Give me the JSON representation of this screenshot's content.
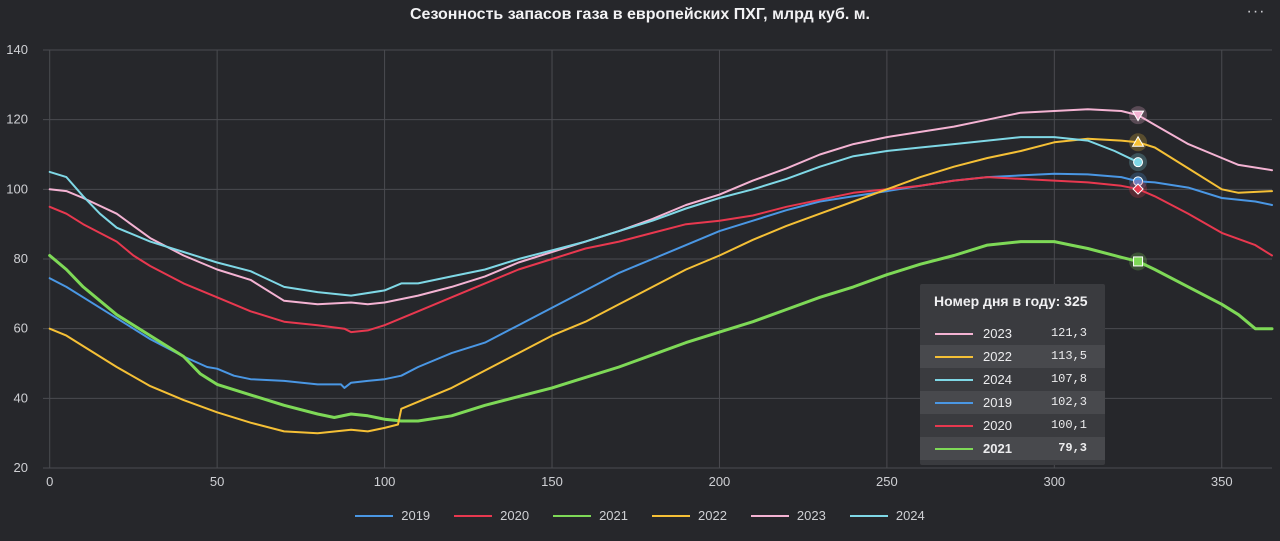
{
  "chart_data": {
    "type": "line",
    "title": "Сезонность запасов газа в европейских ПХГ, млрд куб. м.",
    "xlabel": "",
    "ylabel": "",
    "xlim": [
      -2,
      365
    ],
    "ylim": [
      20,
      140
    ],
    "x_ticks": [
      0,
      50,
      100,
      150,
      200,
      250,
      300,
      350
    ],
    "y_ticks": [
      20,
      40,
      60,
      80,
      100,
      120,
      140
    ],
    "grid": true,
    "legend_position": "bottom",
    "series": [
      {
        "name": "2019",
        "color": "#4a97e4",
        "points": [
          [
            0,
            74.5
          ],
          [
            5,
            72
          ],
          [
            10,
            69
          ],
          [
            20,
            63
          ],
          [
            30,
            57
          ],
          [
            40,
            52
          ],
          [
            47,
            49
          ],
          [
            50,
            48.5
          ],
          [
            55,
            46.5
          ],
          [
            60,
            45.5
          ],
          [
            70,
            45
          ],
          [
            80,
            44
          ],
          [
            87,
            44
          ],
          [
            88,
            43
          ],
          [
            90,
            44.5
          ],
          [
            95,
            45
          ],
          [
            100,
            45.5
          ],
          [
            105,
            46.5
          ],
          [
            110,
            49
          ],
          [
            120,
            53
          ],
          [
            130,
            56
          ],
          [
            140,
            61
          ],
          [
            150,
            66
          ],
          [
            160,
            71
          ],
          [
            170,
            76
          ],
          [
            180,
            80
          ],
          [
            190,
            84
          ],
          [
            200,
            88
          ],
          [
            210,
            91
          ],
          [
            220,
            94
          ],
          [
            230,
            96.5
          ],
          [
            240,
            98
          ],
          [
            250,
            99.5
          ],
          [
            260,
            101
          ],
          [
            270,
            102.5
          ],
          [
            280,
            103.5
          ],
          [
            290,
            104
          ],
          [
            300,
            104.5
          ],
          [
            310,
            104.3
          ],
          [
            320,
            103.5
          ],
          [
            325,
            102.3
          ],
          [
            330,
            102
          ],
          [
            340,
            100.5
          ],
          [
            350,
            97.5
          ],
          [
            360,
            96.5
          ],
          [
            365,
            95.5
          ]
        ]
      },
      {
        "name": "2020",
        "color": "#e8384f",
        "points": [
          [
            0,
            95
          ],
          [
            5,
            93
          ],
          [
            10,
            90
          ],
          [
            20,
            85
          ],
          [
            25,
            81
          ],
          [
            30,
            78
          ],
          [
            40,
            73
          ],
          [
            50,
            69
          ],
          [
            60,
            65
          ],
          [
            70,
            62
          ],
          [
            80,
            61
          ],
          [
            88,
            60
          ],
          [
            90,
            59
          ],
          [
            95,
            59.5
          ],
          [
            100,
            61
          ],
          [
            110,
            65
          ],
          [
            120,
            69
          ],
          [
            130,
            73
          ],
          [
            140,
            77
          ],
          [
            150,
            80
          ],
          [
            160,
            83
          ],
          [
            170,
            85
          ],
          [
            180,
            87.5
          ],
          [
            190,
            90
          ],
          [
            200,
            91
          ],
          [
            210,
            92.5
          ],
          [
            220,
            95
          ],
          [
            230,
            97
          ],
          [
            240,
            99
          ],
          [
            250,
            100
          ],
          [
            260,
            101
          ],
          [
            270,
            102.5
          ],
          [
            280,
            103.5
          ],
          [
            290,
            103
          ],
          [
            300,
            102.5
          ],
          [
            310,
            102
          ],
          [
            320,
            101
          ],
          [
            325,
            100.1
          ],
          [
            330,
            98
          ],
          [
            340,
            93
          ],
          [
            350,
            87.5
          ],
          [
            360,
            84
          ],
          [
            365,
            81
          ]
        ]
      },
      {
        "name": "2021",
        "color": "#7ed957",
        "width": 3,
        "points": [
          [
            0,
            81
          ],
          [
            5,
            77
          ],
          [
            10,
            72
          ],
          [
            20,
            64
          ],
          [
            30,
            58
          ],
          [
            40,
            52
          ],
          [
            45,
            47
          ],
          [
            50,
            44
          ],
          [
            60,
            41
          ],
          [
            70,
            38
          ],
          [
            80,
            35.5
          ],
          [
            85,
            34.5
          ],
          [
            90,
            35.5
          ],
          [
            95,
            35
          ],
          [
            100,
            34
          ],
          [
            105,
            33.5
          ],
          [
            110,
            33.5
          ],
          [
            120,
            35
          ],
          [
            130,
            38
          ],
          [
            140,
            40.5
          ],
          [
            150,
            43
          ],
          [
            160,
            46
          ],
          [
            170,
            49
          ],
          [
            180,
            52.5
          ],
          [
            190,
            56
          ],
          [
            200,
            59
          ],
          [
            210,
            62
          ],
          [
            220,
            65.5
          ],
          [
            230,
            69
          ],
          [
            240,
            72
          ],
          [
            250,
            75.5
          ],
          [
            260,
            78.5
          ],
          [
            270,
            81
          ],
          [
            280,
            84
          ],
          [
            290,
            85
          ],
          [
            300,
            85
          ],
          [
            305,
            84
          ],
          [
            310,
            83
          ],
          [
            320,
            80.5
          ],
          [
            325,
            79.3
          ],
          [
            330,
            77
          ],
          [
            340,
            72
          ],
          [
            350,
            67
          ],
          [
            355,
            64
          ],
          [
            360,
            60
          ],
          [
            365,
            60
          ]
        ]
      },
      {
        "name": "2022",
        "color": "#f5c036",
        "points": [
          [
            0,
            60
          ],
          [
            5,
            58
          ],
          [
            10,
            55
          ],
          [
            20,
            49
          ],
          [
            30,
            43.5
          ],
          [
            40,
            39.5
          ],
          [
            50,
            36
          ],
          [
            60,
            33
          ],
          [
            70,
            30.5
          ],
          [
            80,
            30
          ],
          [
            90,
            31
          ],
          [
            95,
            30.5
          ],
          [
            100,
            31.5
          ],
          [
            104,
            32.5
          ],
          [
            105,
            37
          ],
          [
            110,
            39
          ],
          [
            120,
            43
          ],
          [
            130,
            48
          ],
          [
            140,
            53
          ],
          [
            150,
            58
          ],
          [
            160,
            62
          ],
          [
            170,
            67
          ],
          [
            180,
            72
          ],
          [
            190,
            77
          ],
          [
            200,
            81
          ],
          [
            210,
            85.5
          ],
          [
            220,
            89.5
          ],
          [
            230,
            93
          ],
          [
            240,
            96.5
          ],
          [
            250,
            100
          ],
          [
            260,
            103.5
          ],
          [
            270,
            106.5
          ],
          [
            280,
            109
          ],
          [
            290,
            111
          ],
          [
            300,
            113.5
          ],
          [
            310,
            114.5
          ],
          [
            320,
            114
          ],
          [
            325,
            113.5
          ],
          [
            330,
            112
          ],
          [
            340,
            106
          ],
          [
            350,
            100
          ],
          [
            355,
            99
          ],
          [
            365,
            99.5
          ]
        ]
      },
      {
        "name": "2023",
        "color": "#f4b3d3",
        "points": [
          [
            0,
            100
          ],
          [
            5,
            99.5
          ],
          [
            10,
            97.5
          ],
          [
            20,
            93
          ],
          [
            30,
            86
          ],
          [
            40,
            81
          ],
          [
            50,
            77
          ],
          [
            60,
            74
          ],
          [
            70,
            68
          ],
          [
            80,
            67
          ],
          [
            90,
            67.5
          ],
          [
            95,
            67
          ],
          [
            100,
            67.5
          ],
          [
            110,
            69.5
          ],
          [
            120,
            72
          ],
          [
            130,
            75
          ],
          [
            140,
            79
          ],
          [
            150,
            82
          ],
          [
            160,
            85
          ],
          [
            170,
            88
          ],
          [
            180,
            91.5
          ],
          [
            190,
            95.5
          ],
          [
            200,
            98.5
          ],
          [
            210,
            102.5
          ],
          [
            220,
            106
          ],
          [
            230,
            110
          ],
          [
            240,
            113
          ],
          [
            250,
            115
          ],
          [
            260,
            116.5
          ],
          [
            270,
            118
          ],
          [
            280,
            120
          ],
          [
            290,
            122
          ],
          [
            300,
            122.5
          ],
          [
            310,
            123
          ],
          [
            320,
            122.5
          ],
          [
            325,
            121.3
          ],
          [
            330,
            118.5
          ],
          [
            340,
            113
          ],
          [
            350,
            109
          ],
          [
            355,
            107
          ],
          [
            365,
            105.5
          ]
        ]
      },
      {
        "name": "2024",
        "color": "#7fd8e6",
        "points": [
          [
            0,
            105
          ],
          [
            5,
            103.5
          ],
          [
            10,
            98
          ],
          [
            15,
            93
          ],
          [
            20,
            89
          ],
          [
            30,
            85
          ],
          [
            40,
            82
          ],
          [
            50,
            79
          ],
          [
            60,
            76.5
          ],
          [
            70,
            72
          ],
          [
            80,
            70.5
          ],
          [
            90,
            69.5
          ],
          [
            100,
            71
          ],
          [
            105,
            73
          ],
          [
            110,
            73
          ],
          [
            120,
            75
          ],
          [
            130,
            77
          ],
          [
            140,
            80
          ],
          [
            150,
            82.5
          ],
          [
            160,
            85
          ],
          [
            170,
            88
          ],
          [
            180,
            91
          ],
          [
            190,
            94.5
          ],
          [
            200,
            97.5
          ],
          [
            210,
            100
          ],
          [
            220,
            103
          ],
          [
            230,
            106.5
          ],
          [
            240,
            109.5
          ],
          [
            250,
            111
          ],
          [
            260,
            112
          ],
          [
            270,
            113
          ],
          [
            280,
            114
          ],
          [
            290,
            115
          ],
          [
            300,
            115
          ],
          [
            310,
            114
          ],
          [
            318,
            111
          ],
          [
            325,
            107.8
          ]
        ]
      }
    ],
    "hover": {
      "day": 325,
      "rows": [
        {
          "year": "2023",
          "value": "121,3",
          "color": "#f4b3d3",
          "marker": "triangle-down",
          "y": 121.3
        },
        {
          "year": "2022",
          "value": "113,5",
          "color": "#f5c036",
          "marker": "triangle-up",
          "y": 113.5
        },
        {
          "year": "2024",
          "value": "107,8",
          "color": "#7fd8e6",
          "marker": "circle",
          "y": 107.8
        },
        {
          "year": "2019",
          "value": "102,3",
          "color": "#4a97e4",
          "marker": "circle",
          "y": 102.3
        },
        {
          "year": "2020",
          "value": "100,1",
          "color": "#e8384f",
          "marker": "diamond",
          "y": 100.1
        },
        {
          "year": "2021",
          "value": "79,3",
          "color": "#7ed957",
          "marker": "square",
          "y": 79.3
        }
      ]
    },
    "legend": [
      {
        "label": "2019",
        "color": "#4a97e4"
      },
      {
        "label": "2020",
        "color": "#e8384f"
      },
      {
        "label": "2021",
        "color": "#7ed957"
      },
      {
        "label": "2022",
        "color": "#f5c036"
      },
      {
        "label": "2023",
        "color": "#f4b3d3"
      },
      {
        "label": "2024",
        "color": "#7fd8e6"
      }
    ]
  },
  "tooltip": {
    "title": "Номер дня в году: 325"
  },
  "menu": {
    "icon": "more-icon",
    "glyph": "···"
  }
}
